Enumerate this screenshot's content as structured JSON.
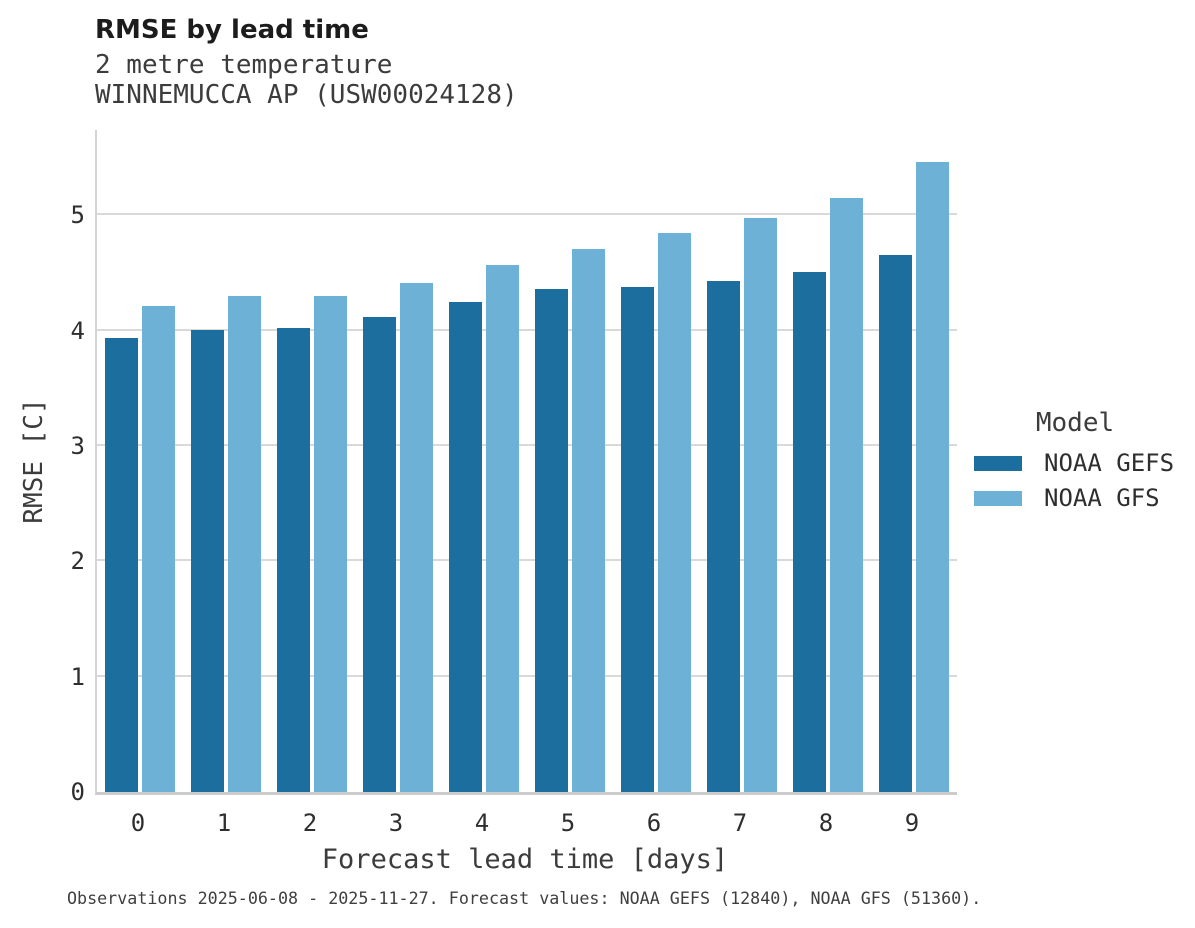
{
  "header": {
    "title": "RMSE by lead time",
    "subtitle_variable": "2 metre temperature",
    "subtitle_station": "WINNEMUCCA AP (USW00024128)"
  },
  "legend": {
    "title": "Model"
  },
  "caption": "Observations 2025-06-08 - 2025-11-27. Forecast values: NOAA GEFS (12840), NOAA GFS (51360).",
  "chart_data": {
    "type": "bar",
    "title": "RMSE by lead time",
    "subtitle": [
      "2 metre temperature",
      "WINNEMUCCA AP (USW00024128)"
    ],
    "xlabel": "Forecast lead time [days]",
    "ylabel": "RMSE [C]",
    "categories": [
      "0",
      "1",
      "2",
      "3",
      "4",
      "5",
      "6",
      "7",
      "8",
      "9"
    ],
    "series": [
      {
        "name": "NOAA GEFS",
        "color": "#1c6e9e",
        "values": [
          3.94,
          4.01,
          4.02,
          4.12,
          4.25,
          4.36,
          4.38,
          4.43,
          4.51,
          4.66
        ]
      },
      {
        "name": "NOAA GFS",
        "color": "#6db1d7",
        "values": [
          4.21,
          4.3,
          4.3,
          4.41,
          4.57,
          4.71,
          4.85,
          4.98,
          5.15,
          5.46
        ]
      }
    ],
    "ylim": [
      0,
      5.74
    ],
    "yticks": [
      0,
      1,
      2,
      3,
      4,
      5
    ],
    "grid": true,
    "legend_title": "Model",
    "legend_position": "right"
  }
}
